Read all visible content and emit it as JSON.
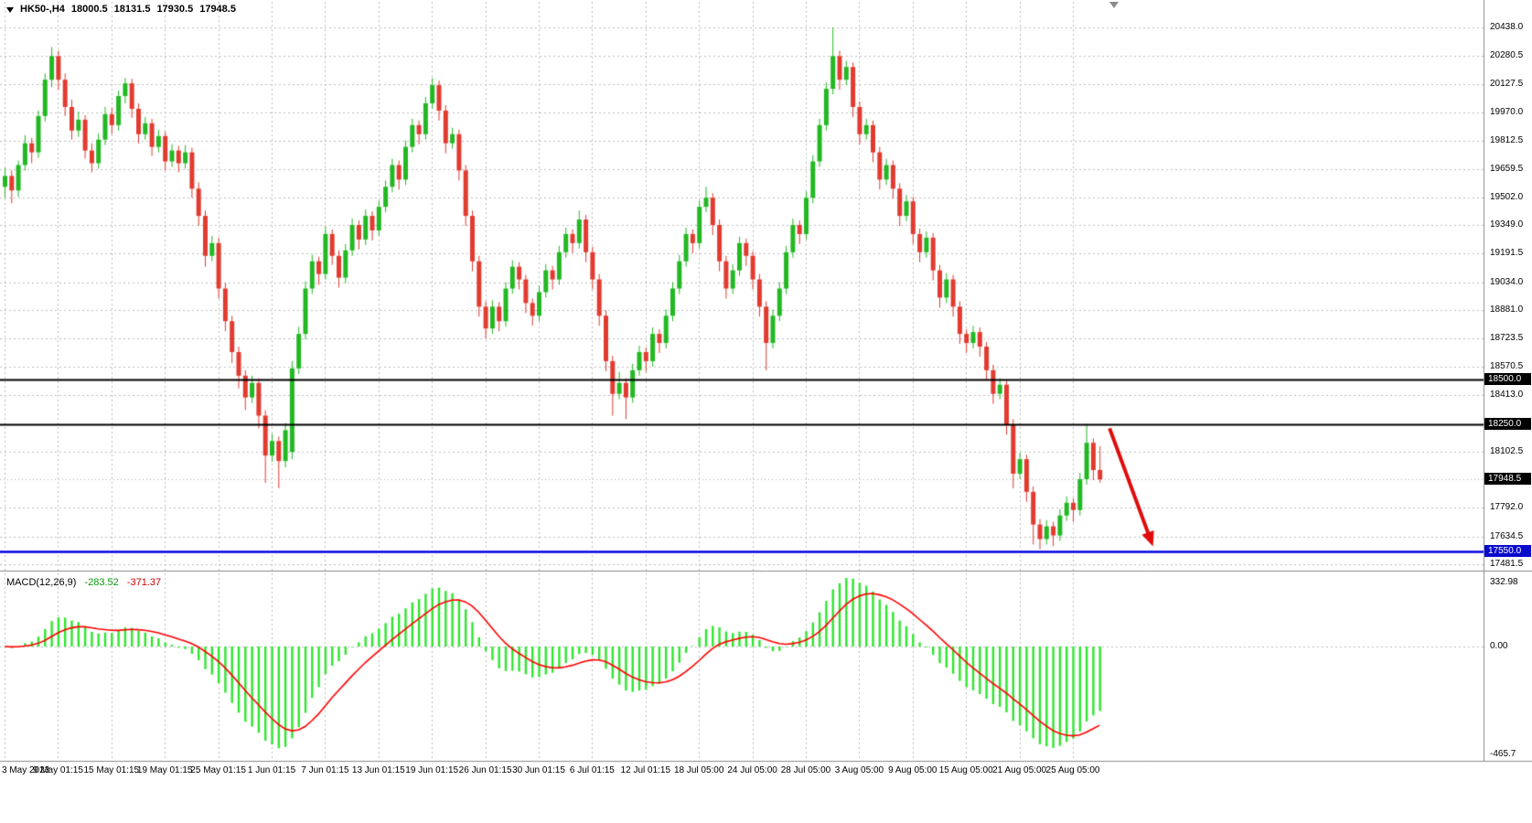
{
  "symbol_bar": {
    "symbol": "HK50-,H4",
    "open": "18000.5",
    "high": "18131.5",
    "low": "17930.5",
    "close": "17948.5"
  },
  "axis_boxes": [
    {
      "name": "level-price-box-18500",
      "label": "18500.0",
      "price": 18500,
      "bg": "#000000"
    },
    {
      "name": "level-price-box-18250",
      "label": "18250.0",
      "price": 18250,
      "bg": "#000000"
    },
    {
      "name": "current-price-box",
      "label": "17948.5",
      "price": 17948.5,
      "bg": "#000000"
    },
    {
      "name": "level-price-box-17550",
      "label": "17550.0",
      "price": 17550,
      "bg": "#0a0acd"
    }
  ],
  "levels": [
    {
      "price": 18500,
      "color": "#000000",
      "width": 2
    },
    {
      "price": 18250,
      "color": "#000000",
      "width": 2
    },
    {
      "price": 17550,
      "color": "#0000e0",
      "width": 2.5
    }
  ],
  "bid_line": {
    "price": 17948.5,
    "color": "#b0b0b0"
  },
  "annotations": [
    {
      "type": "arrow",
      "color": "#e00b0b",
      "width": 4,
      "from": {
        "bar": 165.5,
        "price": 18230
      },
      "to": {
        "bar": 172,
        "price": 17580
      }
    }
  ],
  "macd": {
    "name": "MACD(12,26,9)",
    "value": "-283.52",
    "signal_value": "-371.37",
    "params": {
      "fast": 12,
      "slow": 26,
      "signal": 9
    },
    "axis_labels": {
      "top": "332.98",
      "zero": "0.00",
      "bottom": "-465.7"
    },
    "colors": {
      "histogram": "#2ee62e",
      "signal": "#ff0000"
    }
  },
  "time_axis": {
    "labels": [
      {
        "text": "3 May 2023",
        "bar": 0
      },
      {
        "text": "9 May 01:15",
        "bar": 8
      },
      {
        "text": "15 May 01:15",
        "bar": 16
      },
      {
        "text": "19 May 01:15",
        "bar": 24
      },
      {
        "text": "25 May 01:15",
        "bar": 32
      },
      {
        "text": "1 Jun 01:15",
        "bar": 40
      },
      {
        "text": "7 Jun 01:15",
        "bar": 48
      },
      {
        "text": "13 Jun 01:15",
        "bar": 56
      },
      {
        "text": "19 Jun 01:15",
        "bar": 64
      },
      {
        "text": "26 Jun 01:15",
        "bar": 72
      },
      {
        "text": "30 Jun 01:15",
        "bar": 80
      },
      {
        "text": "6 Jul 01:15",
        "bar": 88
      },
      {
        "text": "12 Jul 01:15",
        "bar": 96
      },
      {
        "text": "18 Jul 05:00",
        "bar": 104
      },
      {
        "text": "24 Jul 05:00",
        "bar": 112
      },
      {
        "text": "28 Jul 05:00",
        "bar": 120
      },
      {
        "text": "3 Aug 05:00",
        "bar": 128
      },
      {
        "text": "9 Aug 05:00",
        "bar": 136
      },
      {
        "text": "15 Aug 05:00",
        "bar": 144
      },
      {
        "text": "21 Aug 05:00",
        "bar": 152
      },
      {
        "text": "25 Aug 05:00",
        "bar": 160
      }
    ]
  },
  "chart_data": {
    "type": "candlestick",
    "title": "HK50-,H4",
    "timeframe": "H4",
    "bars": 165,
    "ylim": [
      17456,
      20520
    ],
    "grid": true,
    "colors": {
      "up": "#23b823",
      "down": "#e23b30",
      "grid": "#bdbdbd"
    },
    "y_tick_labels": [
      "20438.0",
      "20280.5",
      "20127.5",
      "19970.0",
      "19812.5",
      "19659.5",
      "19502.0",
      "19349.0",
      "19191.5",
      "19034.0",
      "18881.0",
      "18723.5",
      "18570.5",
      "18413.0",
      "18102.5",
      "17792.0",
      "17634.5",
      "17481.5"
    ],
    "indicator_note": "MACD(12,26,9) computed from ohlc closes; current values -283.52 / -371.37",
    "ohlc": [
      [
        19560,
        19665,
        19500,
        19620
      ],
      [
        19620,
        19650,
        19470,
        19540
      ],
      [
        19540,
        19705,
        19505,
        19680
      ],
      [
        19680,
        19845,
        19650,
        19800
      ],
      [
        19800,
        19830,
        19690,
        19750
      ],
      [
        19750,
        19980,
        19720,
        19950
      ],
      [
        19950,
        20185,
        19920,
        20150
      ],
      [
        20150,
        20330,
        20110,
        20280
      ],
      [
        20280,
        20310,
        20095,
        20150
      ],
      [
        20150,
        20185,
        19950,
        20000
      ],
      [
        20000,
        20040,
        19820,
        19870
      ],
      [
        19870,
        19975,
        19835,
        19930
      ],
      [
        19930,
        19955,
        19715,
        19760
      ],
      [
        19760,
        19800,
        19640,
        19690
      ],
      [
        19690,
        19855,
        19660,
        19820
      ],
      [
        19820,
        20000,
        19790,
        19960
      ],
      [
        19960,
        19995,
        19850,
        19900
      ],
      [
        19900,
        20090,
        19870,
        20060
      ],
      [
        20060,
        20160,
        20020,
        20130
      ],
      [
        20130,
        20155,
        19940,
        19990
      ],
      [
        19990,
        20020,
        19800,
        19850
      ],
      [
        19850,
        19945,
        19820,
        19910
      ],
      [
        19910,
        19935,
        19730,
        19780
      ],
      [
        19780,
        19875,
        19750,
        19840
      ],
      [
        19840,
        19865,
        19650,
        19700
      ],
      [
        19700,
        19795,
        19670,
        19760
      ],
      [
        19760,
        19785,
        19640,
        19690
      ],
      [
        19690,
        19790,
        19660,
        19750
      ],
      [
        19750,
        19775,
        19500,
        19550
      ],
      [
        19550,
        19585,
        19345,
        19400
      ],
      [
        19400,
        19430,
        19120,
        19180
      ],
      [
        19180,
        19290,
        19150,
        19250
      ],
      [
        19250,
        19280,
        18945,
        19000
      ],
      [
        19000,
        19030,
        18765,
        18820
      ],
      [
        18820,
        18850,
        18590,
        18650
      ],
      [
        18650,
        18680,
        18450,
        18520
      ],
      [
        18520,
        18550,
        18330,
        18400
      ],
      [
        18400,
        18520,
        18370,
        18480
      ],
      [
        18480,
        18505,
        18230,
        18300
      ],
      [
        18300,
        18330,
        17930,
        18080
      ],
      [
        18080,
        18200,
        18045,
        18160
      ],
      [
        18160,
        18185,
        17900,
        18050
      ],
      [
        18050,
        18260,
        18015,
        18220
      ],
      [
        18100,
        18600,
        18060,
        18560
      ],
      [
        18560,
        18790,
        18530,
        18750
      ],
      [
        18750,
        19040,
        18720,
        19000
      ],
      [
        19000,
        19185,
        18970,
        19150
      ],
      [
        19150,
        19175,
        19020,
        19080
      ],
      [
        19080,
        19340,
        19050,
        19300
      ],
      [
        19300,
        19325,
        19130,
        19180
      ],
      [
        19180,
        19210,
        19005,
        19060
      ],
      [
        19060,
        19245,
        19030,
        19210
      ],
      [
        19210,
        19385,
        19180,
        19350
      ],
      [
        19350,
        19375,
        19215,
        19270
      ],
      [
        19270,
        19435,
        19240,
        19400
      ],
      [
        19400,
        19425,
        19265,
        19320
      ],
      [
        19320,
        19485,
        19290,
        19450
      ],
      [
        19450,
        19595,
        19420,
        19560
      ],
      [
        19560,
        19715,
        19530,
        19680
      ],
      [
        19680,
        19705,
        19545,
        19600
      ],
      [
        19600,
        19815,
        19570,
        19780
      ],
      [
        19780,
        19935,
        19750,
        19900
      ],
      [
        19900,
        19925,
        19795,
        19850
      ],
      [
        19850,
        20055,
        19820,
        20020
      ],
      [
        20020,
        20160,
        19990,
        20120
      ],
      [
        20120,
        20145,
        19925,
        19980
      ],
      [
        19980,
        20010,
        19745,
        19800
      ],
      [
        19800,
        19885,
        19770,
        19850
      ],
      [
        19850,
        19875,
        19595,
        19650
      ],
      [
        19650,
        19680,
        19345,
        19400
      ],
      [
        19400,
        19430,
        19095,
        19150
      ],
      [
        19150,
        19180,
        18845,
        18900
      ],
      [
        18900,
        18930,
        18725,
        18780
      ],
      [
        18780,
        18935,
        18750,
        18900
      ],
      [
        18900,
        18925,
        18765,
        18820
      ],
      [
        18820,
        19035,
        18790,
        19000
      ],
      [
        19000,
        19155,
        18970,
        19120
      ],
      [
        19120,
        19145,
        18995,
        19050
      ],
      [
        19050,
        19075,
        18865,
        18920
      ],
      [
        18920,
        18945,
        18795,
        18850
      ],
      [
        18850,
        19015,
        18820,
        18980
      ],
      [
        18980,
        19135,
        18950,
        19100
      ],
      [
        19100,
        19125,
        18995,
        19050
      ],
      [
        19050,
        19235,
        19020,
        19200
      ],
      [
        19200,
        19335,
        19170,
        19300
      ],
      [
        19300,
        19325,
        19195,
        19250
      ],
      [
        19250,
        19430,
        19220,
        19380
      ],
      [
        19380,
        19405,
        19145,
        19200
      ],
      [
        19200,
        19230,
        18995,
        19050
      ],
      [
        19050,
        19080,
        18795,
        18850
      ],
      [
        18850,
        18880,
        18545,
        18600
      ],
      [
        18600,
        18630,
        18300,
        18420
      ],
      [
        18420,
        18540,
        18390,
        18480
      ],
      [
        18480,
        18505,
        18280,
        18400
      ],
      [
        18400,
        18585,
        18370,
        18550
      ],
      [
        18550,
        18685,
        18520,
        18650
      ],
      [
        18650,
        18675,
        18540,
        18600
      ],
      [
        18600,
        18785,
        18570,
        18750
      ],
      [
        18750,
        18775,
        18645,
        18700
      ],
      [
        18700,
        18885,
        18670,
        18850
      ],
      [
        18850,
        19035,
        18820,
        19000
      ],
      [
        19000,
        19185,
        18970,
        19150
      ],
      [
        19150,
        19335,
        19120,
        19300
      ],
      [
        19300,
        19325,
        19195,
        19250
      ],
      [
        19250,
        19485,
        19220,
        19450
      ],
      [
        19450,
        19560,
        19420,
        19500
      ],
      [
        19500,
        19525,
        19295,
        19350
      ],
      [
        19350,
        19380,
        19095,
        19150
      ],
      [
        19150,
        19180,
        18945,
        19000
      ],
      [
        19000,
        19135,
        18970,
        19100
      ],
      [
        19100,
        19285,
        19070,
        19250
      ],
      [
        19250,
        19275,
        19125,
        19180
      ],
      [
        19180,
        19205,
        18995,
        19050
      ],
      [
        19050,
        19080,
        18845,
        18900
      ],
      [
        18900,
        18930,
        18550,
        18700
      ],
      [
        18700,
        18885,
        18670,
        18850
      ],
      [
        18850,
        19035,
        18820,
        19000
      ],
      [
        19000,
        19235,
        18970,
        19200
      ],
      [
        19200,
        19385,
        19170,
        19350
      ],
      [
        19350,
        19375,
        19245,
        19300
      ],
      [
        19300,
        19535,
        19270,
        19500
      ],
      [
        19500,
        19735,
        19470,
        19700
      ],
      [
        19700,
        19935,
        19670,
        19900
      ],
      [
        19900,
        20135,
        19870,
        20100
      ],
      [
        20100,
        20438,
        20070,
        20280
      ],
      [
        20280,
        20310,
        20095,
        20150
      ],
      [
        20150,
        20255,
        20120,
        20220
      ],
      [
        20220,
        20245,
        19945,
        20000
      ],
      [
        20000,
        20030,
        19795,
        19850
      ],
      [
        19850,
        19935,
        19820,
        19900
      ],
      [
        19900,
        19925,
        19695,
        19750
      ],
      [
        19750,
        19780,
        19545,
        19600
      ],
      [
        19600,
        19715,
        19570,
        19680
      ],
      [
        19680,
        19705,
        19495,
        19550
      ],
      [
        19550,
        19580,
        19345,
        19400
      ],
      [
        19400,
        19515,
        19370,
        19480
      ],
      [
        19480,
        19505,
        19245,
        19300
      ],
      [
        19300,
        19330,
        19145,
        19200
      ],
      [
        19200,
        19315,
        19170,
        19280
      ],
      [
        19280,
        19305,
        19045,
        19100
      ],
      [
        19100,
        19130,
        18895,
        18950
      ],
      [
        18950,
        19085,
        18920,
        19050
      ],
      [
        19050,
        19075,
        18845,
        18900
      ],
      [
        18900,
        18930,
        18695,
        18750
      ],
      [
        18750,
        18775,
        18645,
        18700
      ],
      [
        18700,
        18795,
        18670,
        18760
      ],
      [
        18760,
        18785,
        18625,
        18680
      ],
      [
        18680,
        18705,
        18495,
        18550
      ],
      [
        18550,
        18580,
        18365,
        18420
      ],
      [
        18420,
        18505,
        18390,
        18470
      ],
      [
        18470,
        18495,
        18195,
        18250
      ],
      [
        18250,
        18280,
        17900,
        17980
      ],
      [
        17980,
        18095,
        17950,
        18060
      ],
      [
        18060,
        18085,
        17825,
        17880
      ],
      [
        17880,
        17910,
        17590,
        17700
      ],
      [
        17700,
        17730,
        17565,
        17620
      ],
      [
        17620,
        17725,
        17590,
        17690
      ],
      [
        17690,
        17715,
        17580,
        17640
      ],
      [
        17640,
        17785,
        17610,
        17750
      ],
      [
        17750,
        17855,
        17720,
        17820
      ],
      [
        17820,
        17845,
        17715,
        17780
      ],
      [
        17780,
        17985,
        17750,
        17950
      ],
      [
        17950,
        18255,
        17920,
        18150
      ],
      [
        18150,
        18175,
        17945,
        18000
      ],
      [
        18000.5,
        18131.5,
        17930.5,
        17948.5
      ]
    ]
  }
}
